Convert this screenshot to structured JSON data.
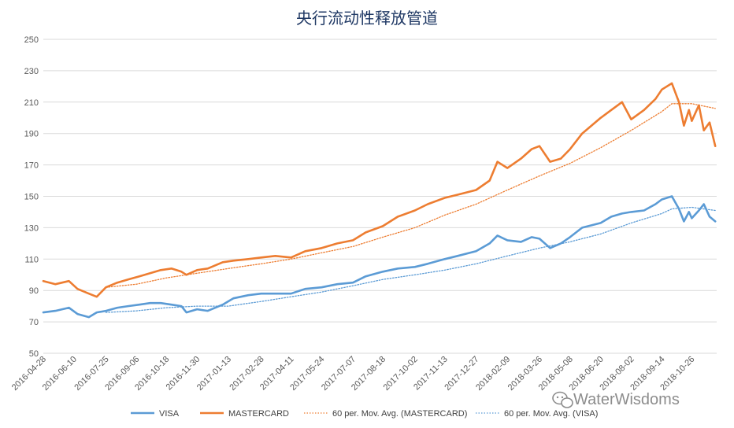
{
  "chart_data": {
    "type": "line",
    "title": "央行流动性释放管道",
    "ylim": [
      50,
      250
    ],
    "yticks": [
      50,
      70,
      90,
      110,
      130,
      150,
      170,
      190,
      210,
      230,
      250
    ],
    "x_start": "2016-04-28",
    "x_end": "2018-11-30",
    "xticks": [
      "2016-04-28",
      "2016-06-10",
      "2016-07-25",
      "2016-09-06",
      "2016-10-18",
      "2016-11-30",
      "2017-01-13",
      "2017-02-28",
      "2017-04-11",
      "2017-05-24",
      "2017-07-07",
      "2017-08-18",
      "2017-10-02",
      "2017-11-13",
      "2017-12-27",
      "2018-02-09",
      "2018-03-26",
      "2018-05-08",
      "2018-06-20",
      "2018-08-02",
      "2018-09-14",
      "2018-10-26"
    ],
    "grid": true,
    "legend_position": "bottom",
    "series": [
      {
        "name": "VISA",
        "color": "#5b9bd5",
        "style": "solid",
        "x": [
          "2016-04-28",
          "2016-05-15",
          "2016-06-03",
          "2016-06-15",
          "2016-07-01",
          "2016-07-12",
          "2016-07-25",
          "2016-08-10",
          "2016-08-25",
          "2016-09-10",
          "2016-09-25",
          "2016-10-10",
          "2016-10-25",
          "2016-11-08",
          "2016-11-15",
          "2016-11-30",
          "2016-12-15",
          "2017-01-05",
          "2017-01-20",
          "2017-02-10",
          "2017-02-28",
          "2017-03-20",
          "2017-04-11",
          "2017-05-01",
          "2017-05-24",
          "2017-06-15",
          "2017-07-07",
          "2017-07-25",
          "2017-08-18",
          "2017-09-08",
          "2017-10-02",
          "2017-10-20",
          "2017-11-13",
          "2017-12-01",
          "2017-12-27",
          "2018-01-15",
          "2018-01-26",
          "2018-02-09",
          "2018-02-28",
          "2018-03-15",
          "2018-03-26",
          "2018-04-10",
          "2018-04-25",
          "2018-05-08",
          "2018-05-25",
          "2018-06-20",
          "2018-07-05",
          "2018-07-20",
          "2018-08-02",
          "2018-08-20",
          "2018-09-05",
          "2018-09-14",
          "2018-09-28",
          "2018-10-08",
          "2018-10-15",
          "2018-10-22",
          "2018-10-26",
          "2018-11-05",
          "2018-11-12",
          "2018-11-20",
          "2018-11-28"
        ],
        "values": [
          76,
          77,
          79,
          75,
          73,
          76,
          77,
          79,
          80,
          81,
          82,
          82,
          81,
          80,
          76,
          78,
          77,
          81,
          85,
          87,
          88,
          88,
          88,
          91,
          92,
          94,
          95,
          99,
          102,
          104,
          105,
          107,
          110,
          112,
          115,
          120,
          125,
          122,
          121,
          124,
          123,
          117,
          120,
          124,
          130,
          133,
          137,
          139,
          140,
          141,
          145,
          148,
          150,
          142,
          134,
          140,
          136,
          141,
          145,
          137,
          134
        ]
      },
      {
        "name": "MASTERCARD",
        "color": "#ed7d31",
        "style": "solid",
        "x": [
          "2016-04-28",
          "2016-05-15",
          "2016-06-03",
          "2016-06-15",
          "2016-07-01",
          "2016-07-12",
          "2016-07-25",
          "2016-08-10",
          "2016-08-25",
          "2016-09-10",
          "2016-09-25",
          "2016-10-10",
          "2016-10-25",
          "2016-11-08",
          "2016-11-15",
          "2016-11-30",
          "2016-12-15",
          "2017-01-05",
          "2017-01-20",
          "2017-02-10",
          "2017-02-28",
          "2017-03-20",
          "2017-04-11",
          "2017-05-01",
          "2017-05-24",
          "2017-06-15",
          "2017-07-07",
          "2017-07-25",
          "2017-08-18",
          "2017-09-08",
          "2017-10-02",
          "2017-10-20",
          "2017-11-13",
          "2017-12-01",
          "2017-12-27",
          "2018-01-15",
          "2018-01-26",
          "2018-02-09",
          "2018-02-28",
          "2018-03-15",
          "2018-03-26",
          "2018-04-10",
          "2018-04-25",
          "2018-05-08",
          "2018-05-25",
          "2018-06-20",
          "2018-07-05",
          "2018-07-20",
          "2018-08-02",
          "2018-08-20",
          "2018-09-05",
          "2018-09-14",
          "2018-09-28",
          "2018-10-08",
          "2018-10-15",
          "2018-10-22",
          "2018-10-26",
          "2018-11-05",
          "2018-11-12",
          "2018-11-20",
          "2018-11-28"
        ],
        "values": [
          96,
          94,
          96,
          91,
          88,
          86,
          92,
          95,
          97,
          99,
          101,
          103,
          104,
          102,
          100,
          103,
          104,
          108,
          109,
          110,
          111,
          112,
          111,
          115,
          117,
          120,
          122,
          127,
          131,
          137,
          141,
          145,
          149,
          151,
          154,
          160,
          172,
          168,
          174,
          180,
          182,
          172,
          174,
          180,
          190,
          200,
          205,
          210,
          199,
          205,
          212,
          218,
          222,
          210,
          195,
          205,
          198,
          208,
          192,
          197,
          182
        ]
      },
      {
        "name": "60 per. Mov. Avg. (MASTERCARD)",
        "color": "#ed7d31",
        "style": "dotted",
        "x": [
          "2016-07-25",
          "2016-09-06",
          "2016-10-18",
          "2016-11-30",
          "2017-01-13",
          "2017-02-28",
          "2017-04-11",
          "2017-05-24",
          "2017-07-07",
          "2017-08-18",
          "2017-10-02",
          "2017-11-13",
          "2017-12-27",
          "2018-02-09",
          "2018-03-26",
          "2018-05-08",
          "2018-06-20",
          "2018-08-02",
          "2018-09-14",
          "2018-09-28",
          "2018-10-26",
          "2018-11-28"
        ],
        "values": [
          92,
          94,
          98,
          101,
          104,
          107,
          110,
          114,
          118,
          124,
          130,
          138,
          145,
          154,
          163,
          171,
          181,
          192,
          204,
          209,
          209,
          206
        ]
      },
      {
        "name": "60 per. Mov. Avg. (VISA)",
        "color": "#5b9bd5",
        "style": "dotted",
        "x": [
          "2016-07-25",
          "2016-09-06",
          "2016-10-18",
          "2016-11-30",
          "2017-01-13",
          "2017-02-28",
          "2017-04-11",
          "2017-05-24",
          "2017-07-07",
          "2017-08-18",
          "2017-10-02",
          "2017-11-13",
          "2017-12-27",
          "2018-02-09",
          "2018-03-26",
          "2018-05-08",
          "2018-06-20",
          "2018-08-02",
          "2018-09-14",
          "2018-09-28",
          "2018-10-26",
          "2018-11-28"
        ],
        "values": [
          76,
          77,
          79,
          80,
          80,
          83,
          86,
          89,
          93,
          97,
          100,
          103,
          107,
          112,
          117,
          121,
          126,
          133,
          139,
          142,
          143,
          141
        ]
      }
    ]
  },
  "watermark": {
    "text": "WaterWisdoms",
    "icon": "wechat-icon"
  }
}
